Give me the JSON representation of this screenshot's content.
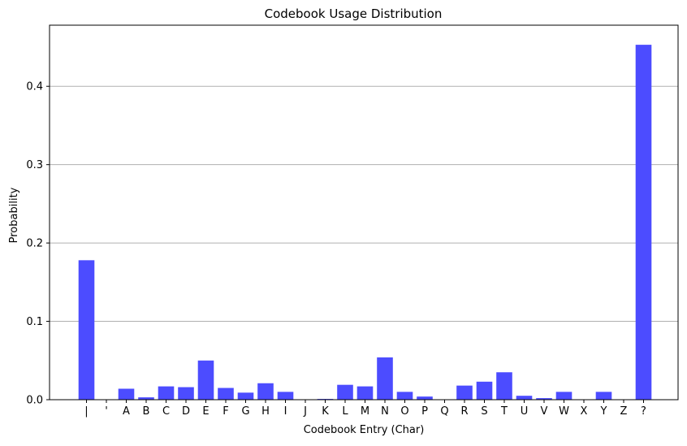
{
  "chart_data": {
    "type": "bar",
    "title": "Codebook Usage Distribution",
    "xlabel": "Codebook Entry (Char)",
    "ylabel": "Probability",
    "categories": [
      " ",
      "'",
      "A",
      "B",
      "C",
      "D",
      "E",
      "F",
      "G",
      "H",
      "I",
      "J",
      "K",
      "L",
      "M",
      "N",
      "O",
      "P",
      "Q",
      "R",
      "S",
      "T",
      "U",
      "V",
      "W",
      "X",
      "Y",
      "Z",
      "?"
    ],
    "tick_labels": [
      "|",
      "'",
      "A",
      "B",
      "C",
      "D",
      "E",
      "F",
      "G",
      "H",
      "I",
      "J",
      "K",
      "L",
      "M",
      "N",
      "O",
      "P",
      "Q",
      "R",
      "S",
      "T",
      "U",
      "V",
      "W",
      "X",
      "Y",
      "Z",
      "?"
    ],
    "values": [
      0.178,
      0.0,
      0.014,
      0.003,
      0.017,
      0.016,
      0.05,
      0.015,
      0.009,
      0.021,
      0.01,
      0.0,
      0.001,
      0.019,
      0.017,
      0.054,
      0.01,
      0.004,
      0.0,
      0.018,
      0.023,
      0.035,
      0.005,
      0.002,
      0.01,
      0.0,
      0.01,
      0.0,
      0.453
    ],
    "ylim": [
      0,
      0.478
    ],
    "yticks": [
      0.0,
      0.1,
      0.2,
      0.3,
      0.4
    ],
    "ytick_labels": [
      "0.0",
      "0.1",
      "0.2",
      "0.3",
      "0.4"
    ],
    "grid": "y-major",
    "bar_color": "#4c4cff",
    "grid_color": "#b0b0b0"
  }
}
